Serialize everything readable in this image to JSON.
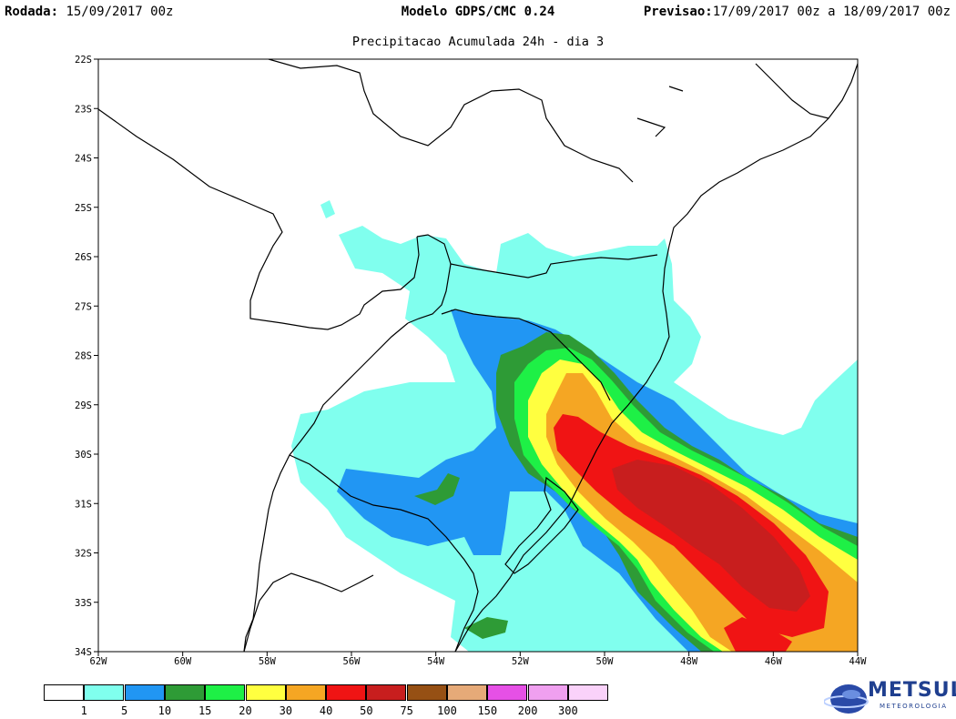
{
  "header": {
    "left_label": "Rodada:",
    "left_value": " 15/09/2017 00z",
    "center": "Modelo GDPS/CMC 0.24",
    "right_label": "Previsao:",
    "right_value": "17/09/2017 00z a 18/09/2017 00z"
  },
  "subtitle": "Precipitacao Acumulada 24h - dia 3",
  "map": {
    "lat_ticks": [
      "22S",
      "23S",
      "24S",
      "25S",
      "26S",
      "27S",
      "28S",
      "29S",
      "30S",
      "31S",
      "32S",
      "33S",
      "34S"
    ],
    "lon_ticks": [
      "62W",
      "60W",
      "58W",
      "56W",
      "54W",
      "52W",
      "50W",
      "48W",
      "46W",
      "44W"
    ],
    "lat_range": [
      -34,
      -22
    ],
    "lon_range": [
      -62,
      -44
    ]
  },
  "legend": {
    "colors": [
      "#ffffff",
      "#80ffee",
      "#2196f3",
      "#2e9b36",
      "#1ef046",
      "#ffff40",
      "#f5a623",
      "#f01414",
      "#c81e1e",
      "#965014",
      "#e6aa78",
      "#e650e6",
      "#f0a0f0",
      "#fad2fa"
    ],
    "labels": [
      "1",
      "5",
      "10",
      "15",
      "20",
      "30",
      "40",
      "50",
      "75",
      "100",
      "150",
      "200",
      "300"
    ]
  },
  "logo": {
    "name": "METSUL",
    "tagline": "METEOROLOGIA"
  }
}
